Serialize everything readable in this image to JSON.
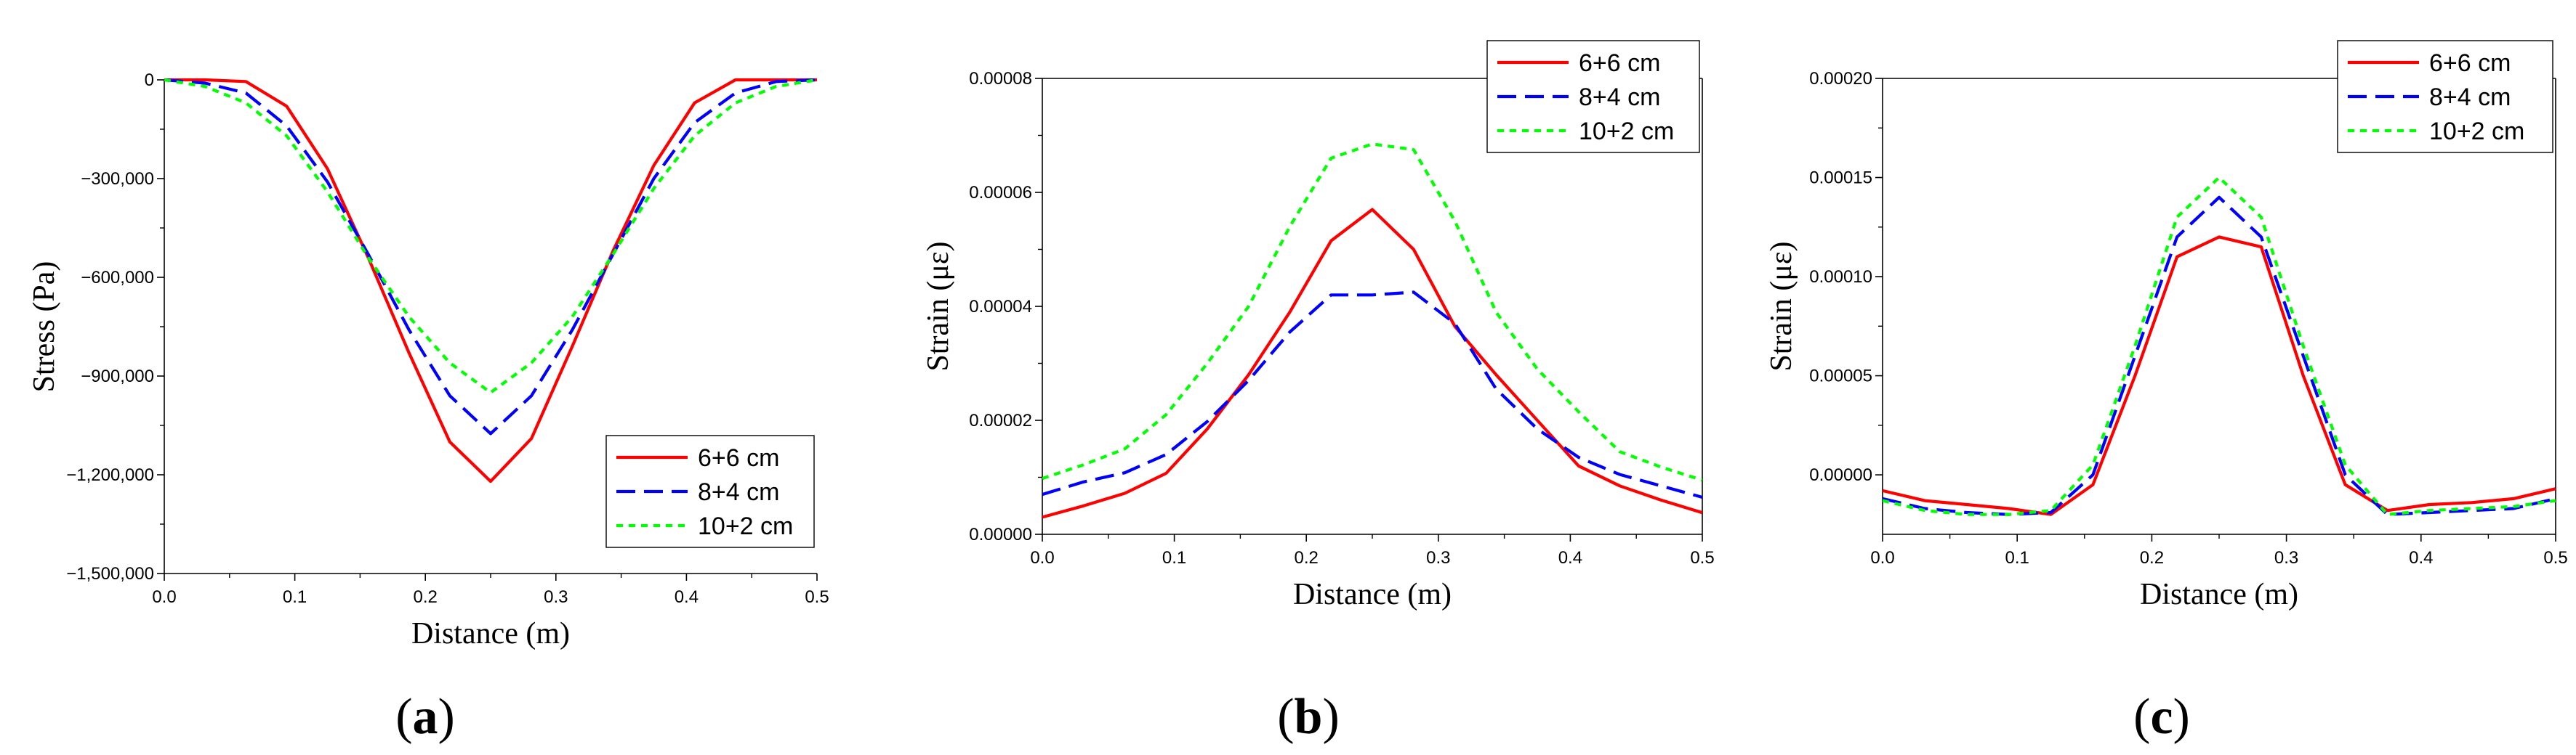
{
  "chart_data": [
    {
      "type": "line",
      "panel_label": "a",
      "xlabel": "Distance (m)",
      "ylabel": "Stress (Pa)",
      "xlim": [
        0.0,
        0.5
      ],
      "ylim": [
        -1500000,
        0
      ],
      "xticks": [
        0.0,
        0.1,
        0.2,
        0.3,
        0.4,
        0.5
      ],
      "xtick_labels": [
        "0.0",
        "0.1",
        "0.2",
        "0.3",
        "0.4",
        "0.5"
      ],
      "yticks": [
        0,
        -300000,
        -600000,
        -900000,
        -1200000,
        -1500000
      ],
      "ytick_labels": [
        "0",
        "−300,000",
        "−600,000",
        "−900,000",
        "−1,200,000",
        "−1,500,000"
      ],
      "legend_position": "bottom-right",
      "x": [
        0.0,
        0.03125,
        0.0625,
        0.09375,
        0.125,
        0.15625,
        0.1875,
        0.21875,
        0.25,
        0.28125,
        0.3125,
        0.34375,
        0.375,
        0.40625,
        0.4375,
        0.46875,
        0.5
      ],
      "series": [
        {
          "name": "6+6 cm",
          "color": "#ff0000",
          "dash": "solid",
          "values": [
            0,
            0,
            -5000,
            -80000,
            -270000,
            -540000,
            -830000,
            -1100000,
            -1220000,
            -1090000,
            -810000,
            -520000,
            -260000,
            -70000,
            0,
            0,
            0
          ]
        },
        {
          "name": "8+4 cm",
          "color": "#0000ff",
          "dash": "dash",
          "values": [
            0,
            -10000,
            -40000,
            -140000,
            -310000,
            -530000,
            -760000,
            -960000,
            -1075000,
            -960000,
            -760000,
            -530000,
            -300000,
            -130000,
            -40000,
            -5000,
            0
          ]
        },
        {
          "name": "10+2 cm",
          "color": "#00ff00",
          "dash": "dot",
          "values": [
            0,
            -20000,
            -70000,
            -170000,
            -340000,
            -540000,
            -720000,
            -860000,
            -950000,
            -860000,
            -720000,
            -530000,
            -330000,
            -170000,
            -70000,
            -20000,
            0
          ]
        }
      ]
    },
    {
      "type": "line",
      "panel_label": "b",
      "xlabel": "Distance (m)",
      "ylabel": "Strain (με)",
      "xlim": [
        0.0,
        0.5
      ],
      "ylim": [
        0.0,
        8e-05
      ],
      "xticks": [
        0.0,
        0.1,
        0.2,
        0.3,
        0.4,
        0.5
      ],
      "xtick_labels": [
        "0.0",
        "0.1",
        "0.2",
        "0.3",
        "0.4",
        "0.5"
      ],
      "yticks": [
        0.0,
        2e-05,
        4e-05,
        6e-05,
        8e-05
      ],
      "ytick_labels": [
        "0.00000",
        "0.00002",
        "0.00004",
        "0.00006",
        "0.00008"
      ],
      "legend_position": "top-right",
      "x": [
        0.0,
        0.03125,
        0.0625,
        0.09375,
        0.125,
        0.15625,
        0.1875,
        0.21875,
        0.25,
        0.28125,
        0.3125,
        0.34375,
        0.375,
        0.40625,
        0.4375,
        0.46875,
        0.5
      ],
      "series": [
        {
          "name": "6+6 cm",
          "color": "#ff0000",
          "dash": "solid",
          "values": [
            3e-06,
            5e-06,
            7.2e-06,
            1.07e-05,
            1.85e-05,
            2.8e-05,
            3.9e-05,
            5.15e-05,
            5.7e-05,
            5e-05,
            3.65e-05,
            2.8e-05,
            2e-05,
            1.2e-05,
            8.5e-06,
            6e-06,
            3.8e-06
          ]
        },
        {
          "name": "8+4 cm",
          "color": "#0000ff",
          "dash": "dash",
          "values": [
            7e-06,
            9.2e-06,
            1.08e-05,
            1.4e-05,
            1.98e-05,
            2.7e-05,
            3.55e-05,
            4.2e-05,
            4.2e-05,
            4.25e-05,
            3.7e-05,
            2.55e-05,
            1.85e-05,
            1.35e-05,
            1.05e-05,
            8.5e-06,
            6.5e-06
          ]
        },
        {
          "name": "10+2 cm",
          "color": "#00ff00",
          "dash": "dot",
          "values": [
            9.8e-06,
            1.22e-05,
            1.5e-05,
            2.1e-05,
            3e-05,
            4e-05,
            5.4e-05,
            6.6e-05,
            6.85e-05,
            6.75e-05,
            5.5e-05,
            3.9e-05,
            2.9e-05,
            2.15e-05,
            1.45e-05,
            1.18e-05,
            9.5e-06
          ]
        }
      ]
    },
    {
      "type": "line",
      "panel_label": "c",
      "xlabel": "Distance (m)",
      "ylabel": "Strain (με)",
      "xlim": [
        0.0,
        0.5
      ],
      "ylim": [
        -3e-05,
        0.0002
      ],
      "xticks": [
        0.0,
        0.1,
        0.2,
        0.3,
        0.4,
        0.5
      ],
      "xtick_labels": [
        "0.0",
        "0.1",
        "0.2",
        "0.3",
        "0.4",
        "0.5"
      ],
      "yticks": [
        0.0,
        5e-05,
        0.0001,
        0.00015,
        0.0002
      ],
      "ytick_labels": [
        "0.00000",
        "0.00005",
        "0.00010",
        "0.00015",
        "0.00020"
      ],
      "legend_position": "top-right",
      "x": [
        0.0,
        0.03125,
        0.0625,
        0.09375,
        0.125,
        0.15625,
        0.1875,
        0.21875,
        0.25,
        0.28125,
        0.3125,
        0.34375,
        0.375,
        0.40625,
        0.4375,
        0.46875,
        0.5
      ],
      "series": [
        {
          "name": "6+6 cm",
          "color": "#ff0000",
          "dash": "solid",
          "values": [
            -8e-06,
            -1.3e-05,
            -1.5e-05,
            -1.7e-05,
            -2e-05,
            -5e-06,
            5e-05,
            0.00011,
            0.00012,
            0.000115,
            5e-05,
            -5e-06,
            -1.8e-05,
            -1.5e-05,
            -1.4e-05,
            -1.2e-05,
            -7e-06
          ]
        },
        {
          "name": "8+4 cm",
          "color": "#0000ff",
          "dash": "dash",
          "values": [
            -1.2e-05,
            -1.7e-05,
            -1.9e-05,
            -2e-05,
            -1.9e-05,
            0.0,
            6e-05,
            0.00012,
            0.00014,
            0.00012,
            6e-05,
            0.0,
            -2e-05,
            -1.9e-05,
            -1.8e-05,
            -1.7e-05,
            -1.2e-05
          ]
        },
        {
          "name": "10+2 cm",
          "color": "#00ff00",
          "dash": "dot",
          "values": [
            -1.3e-05,
            -1.8e-05,
            -2e-05,
            -2e-05,
            -1.8e-05,
            5e-06,
            6.5e-05,
            0.00013,
            0.00015,
            0.00013,
            6.5e-05,
            5e-06,
            -2e-05,
            -1.8e-05,
            -1.7e-05,
            -1.6e-05,
            -1.3e-05
          ]
        }
      ]
    }
  ]
}
